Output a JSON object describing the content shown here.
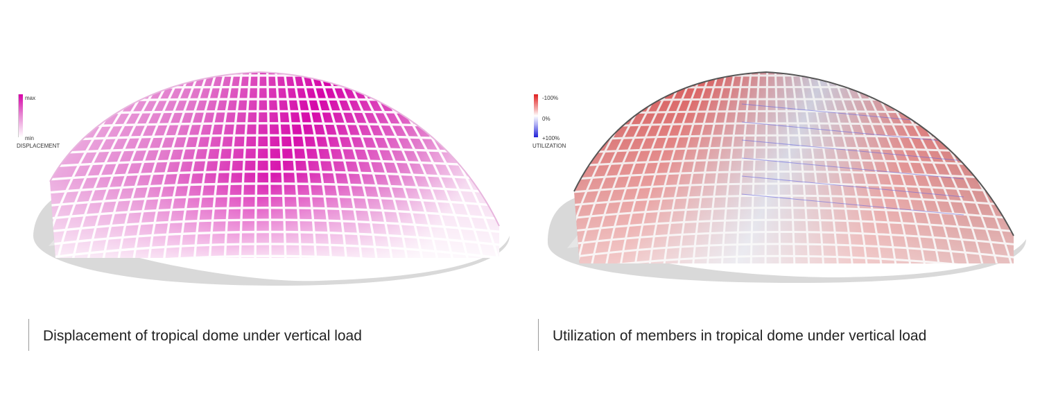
{
  "left_panel": {
    "legend": {
      "max_label": "max",
      "min_label": "min",
      "title": "DISPLACEMENT",
      "colors": {
        "high": "#d700a8",
        "low": "#ffffff"
      }
    },
    "caption": "Displacement of tropical dome under vertical load"
  },
  "right_panel": {
    "legend": {
      "top_label": "-100%",
      "mid_label": "0%",
      "bottom_label": "+100%",
      "title": "UTILIZATION",
      "colors": {
        "top": "#e02020",
        "mid": "#ffffff",
        "bottom": "#2020d8"
      }
    },
    "caption": "Utilization of members in tropical dome under vertical load"
  }
}
